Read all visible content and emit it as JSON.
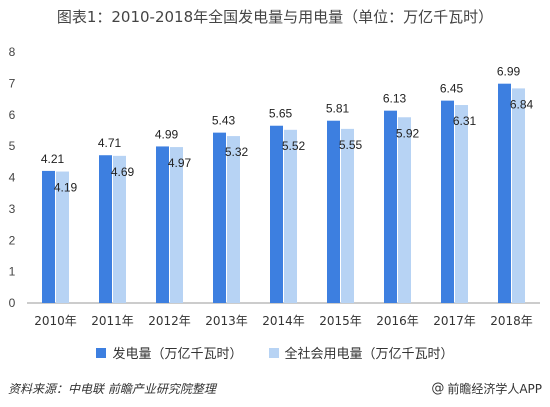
{
  "title": "图表1：2010-2018年全国发电量与用电量（单位：万亿千瓦时）",
  "legend": {
    "series1": "发电量（万亿千瓦时）",
    "series2": "全社会用电量（万亿千瓦时）"
  },
  "source": "资料来源：中电联 前瞻产业研究院整理",
  "credit": {
    "icon": "at-icon",
    "text": "前瞻经济学人APP"
  },
  "colors": {
    "series1": "#3d7fe0",
    "series2": "#b7d3f4",
    "axis": "#999999",
    "text": "#333333"
  },
  "chart_data": {
    "type": "bar",
    "categories": [
      "2010年",
      "2011年",
      "2012年",
      "2013年",
      "2014年",
      "2015年",
      "2016年",
      "2017年",
      "2018年"
    ],
    "series": [
      {
        "name": "发电量（万亿千瓦时）",
        "values": [
          4.21,
          4.71,
          4.99,
          5.43,
          5.65,
          5.81,
          6.13,
          6.45,
          6.99
        ]
      },
      {
        "name": "全社会用电量（万亿千瓦时）",
        "values": [
          4.19,
          4.69,
          4.97,
          5.32,
          5.52,
          5.55,
          5.92,
          6.31,
          6.84
        ]
      }
    ],
    "yticks": [
      0,
      1,
      2,
      3,
      4,
      5,
      6,
      7,
      8
    ],
    "ylim": [
      0,
      8
    ],
    "grid": false,
    "legend_position": "bottom"
  }
}
